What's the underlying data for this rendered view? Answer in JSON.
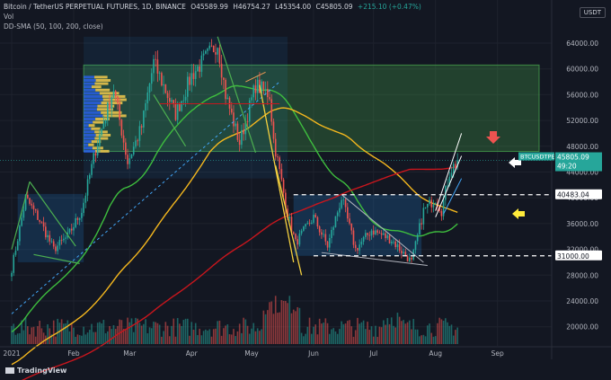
{
  "header": {
    "symbol": "Bitcoin / TetherUS PERPETUAL FUTURES, 1D, BINANCE",
    "open": "O45589.99",
    "high": "H46754.27",
    "low": "L45354.00",
    "close": "C45805.09",
    "change": "+215.10 (+0.47%)",
    "vol": "Vol",
    "indicator": "DD-SMA (50, 100, 200, close)"
  },
  "currency_button": "USDT",
  "price_tag": {
    "symbol": "BTCUSDTPERP",
    "price": "45805.09",
    "countdown": "49:20"
  },
  "level_labels": {
    "upper": "40483.04",
    "lower": "31000.00"
  },
  "logo": "TradingView",
  "colors": {
    "background": "#131722",
    "up": "#26a69a",
    "down": "#ef5350",
    "sma50": "#3ebe3e",
    "sma100": "#f4b71e",
    "sma200": "#c8161d",
    "zone_green": "#4caf50",
    "range_box": "#2196f3",
    "vp_blue": "#2962ff",
    "vp_yellow": "#f2c94c"
  },
  "chart_data": {
    "type": "candlestick",
    "title": "Bitcoin / TetherUS PERPETUAL FUTURES, 1D, BINANCE",
    "y_axis_ticks": [
      64000,
      60000,
      56000,
      52000,
      48000,
      44000,
      40000,
      36000,
      32000,
      28000,
      24000,
      20000
    ],
    "y_axis_labels": [
      "64000.00",
      "60000.00",
      "56000.00",
      "52000.00",
      "48000.00",
      "44000.00",
      "40000.00",
      "36000.00",
      "32000.00",
      "28000.00",
      "24000.00",
      "20000.00"
    ],
    "x_axis_labels": [
      "2021",
      "Feb",
      "Mar",
      "Apr",
      "May",
      "Jun",
      "Jul",
      "Aug",
      "Sep"
    ],
    "anchors": [
      [
        "2021-01-01",
        29000
      ],
      [
        "2021-01-08",
        40000
      ],
      [
        "2021-01-15",
        36500
      ],
      [
        "2021-01-22",
        32000
      ],
      [
        "2021-01-29",
        34000
      ],
      [
        "2021-02-05",
        38000
      ],
      [
        "2021-02-12",
        47500
      ],
      [
        "2021-02-21",
        57000
      ],
      [
        "2021-02-28",
        45500
      ],
      [
        "2021-03-07",
        51000
      ],
      [
        "2021-03-13",
        61000
      ],
      [
        "2021-03-24",
        53000
      ],
      [
        "2021-04-01",
        59000
      ],
      [
        "2021-04-14",
        64000
      ],
      [
        "2021-04-18",
        56000
      ],
      [
        "2021-04-25",
        48500
      ],
      [
        "2021-05-03",
        57500
      ],
      [
        "2021-05-10",
        56000
      ],
      [
        "2021-05-12",
        49000
      ],
      [
        "2021-05-19",
        37500
      ],
      [
        "2021-05-23",
        33000
      ],
      [
        "2021-06-01",
        37000
      ],
      [
        "2021-06-08",
        32500
      ],
      [
        "2021-06-15",
        40000
      ],
      [
        "2021-06-22",
        32000
      ],
      [
        "2021-06-30",
        35000
      ],
      [
        "2021-07-10",
        33500
      ],
      [
        "2021-07-20",
        30000
      ],
      [
        "2021-07-26",
        38000
      ],
      [
        "2021-08-01",
        40000
      ],
      [
        "2021-08-04",
        38000
      ],
      [
        "2021-08-08",
        44000
      ],
      [
        "2021-08-12",
        45805
      ]
    ],
    "last_price": 45805.09,
    "horizontal_levels": [
      40483.04,
      31000.0
    ]
  }
}
